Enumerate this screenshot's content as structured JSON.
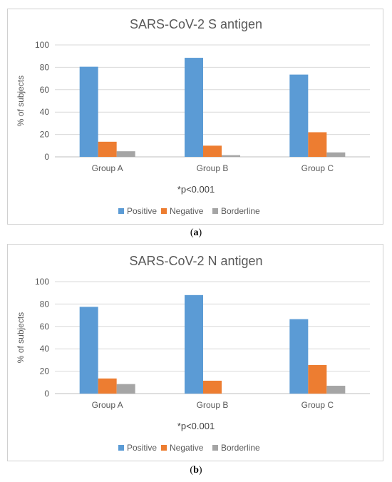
{
  "chart_data": [
    {
      "type": "bar",
      "title": "SARS-CoV-2 S antigen",
      "ylabel": "% of subjects",
      "xlabel": "",
      "categories": [
        "Group A",
        "Group B",
        "Group C"
      ],
      "series": [
        {
          "name": "Positive",
          "color": "#5b9bd5",
          "values": [
            80.5,
            88.5,
            73.5
          ]
        },
        {
          "name": "Negative",
          "color": "#ed7d31",
          "values": [
            13.5,
            10,
            22
          ]
        },
        {
          "name": "Borderline",
          "color": "#a5a5a5",
          "values": [
            5,
            1.5,
            4
          ]
        }
      ],
      "ylim": [
        0,
        100
      ],
      "yticks": [
        "0",
        "20",
        "40",
        "60",
        "80",
        "100"
      ],
      "annotation": "*p<0.001",
      "grid": true,
      "legend_position": "bottom"
    },
    {
      "type": "bar",
      "title": "SARS-CoV-2  N antigen",
      "ylabel": "% of subjects",
      "xlabel": "",
      "categories": [
        "Group A",
        "Group B",
        "Group C"
      ],
      "series": [
        {
          "name": "Positive",
          "color": "#5b9bd5",
          "values": [
            77.5,
            88,
            66.5
          ]
        },
        {
          "name": "Negative",
          "color": "#ed7d31",
          "values": [
            13.5,
            11.5,
            25.5
          ]
        },
        {
          "name": "Borderline",
          "color": "#a5a5a5",
          "values": [
            8.5,
            0,
            7
          ]
        }
      ],
      "ylim": [
        0,
        100
      ],
      "yticks": [
        "0",
        "20",
        "40",
        "60",
        "80",
        "100"
      ],
      "annotation": "*p<0.001",
      "grid": true,
      "legend_position": "bottom"
    }
  ],
  "captions": {
    "a": {
      "open": "(",
      "letter": "a",
      "close": ")"
    },
    "b": {
      "open": "(",
      "letter": "b",
      "close": ")"
    }
  }
}
